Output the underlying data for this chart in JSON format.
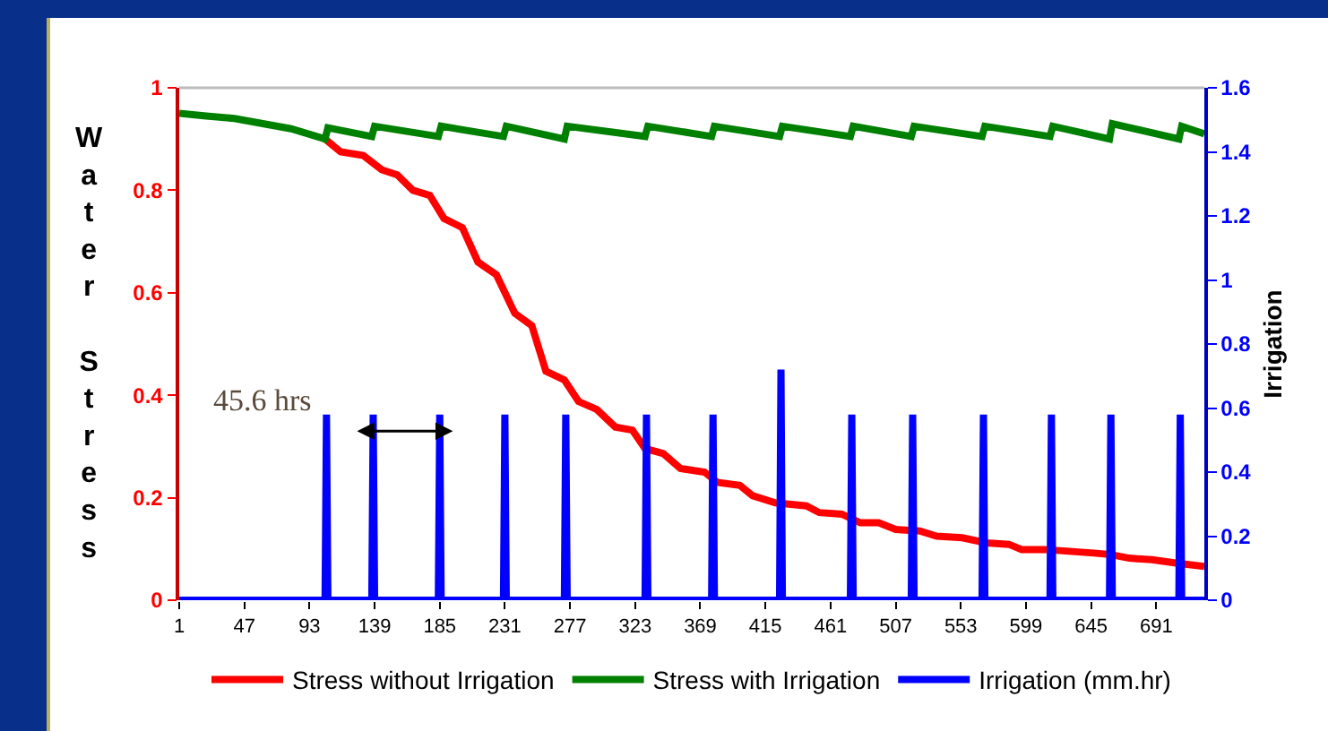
{
  "chart_data": {
    "type": "line",
    "ylabel": "Water Stress",
    "y2label": "Irrigation",
    "xlim": [
      1,
      725
    ],
    "xticks": [
      1,
      47,
      93,
      139,
      185,
      231,
      277,
      323,
      369,
      415,
      461,
      507,
      553,
      599,
      645,
      691
    ],
    "ylim": [
      0,
      1
    ],
    "yticks": [
      0,
      0.2,
      0.4,
      0.6,
      0.8,
      1
    ],
    "y2lim": [
      0,
      1.6
    ],
    "y2ticks": [
      0,
      0.2,
      0.4,
      0.6,
      0.8,
      1,
      1.2,
      1.4,
      1.6
    ],
    "grid": false,
    "legend": "bottom",
    "marker": "none",
    "line_style": "solid",
    "annotations": [
      "45.6 hrs"
    ],
    "series": [
      {
        "name": "Stress without Irrigation",
        "color": "#ff0000",
        "x": [
          104,
          115,
          131,
          144,
          155,
          166,
          178,
          188,
          201,
          212,
          225,
          238,
          250,
          260,
          273,
          283,
          296,
          309,
          321,
          330,
          343,
          355,
          372,
          381,
          397,
          406,
          422,
          444,
          453,
          469,
          482,
          495,
          507,
          524,
          536,
          554,
          571,
          587,
          596,
          612,
          647,
          659,
          672,
          688,
          706,
          725
        ],
        "values": [
          0.9,
          0.875,
          0.868,
          0.84,
          0.83,
          0.8,
          0.79,
          0.745,
          0.727,
          0.66,
          0.635,
          0.56,
          0.536,
          0.447,
          0.43,
          0.388,
          0.372,
          0.338,
          0.332,
          0.296,
          0.286,
          0.257,
          0.25,
          0.23,
          0.224,
          0.204,
          0.19,
          0.184,
          0.171,
          0.168,
          0.151,
          0.151,
          0.138,
          0.135,
          0.125,
          0.122,
          0.112,
          0.109,
          0.099,
          0.099,
          0.092,
          0.089,
          0.082,
          0.079,
          0.072,
          0.066
        ]
      },
      {
        "name": "Stress with Irrigation",
        "color": "#008000",
        "x": [
          1,
          20,
          40,
          60,
          80,
          104,
          106,
          137,
          139,
          184,
          186,
          230,
          232,
          273,
          275,
          330,
          332,
          377,
          379,
          425,
          427,
          475,
          477,
          518,
          520,
          568,
          570,
          616,
          618,
          658,
          660,
          707,
          709,
          725
        ],
        "values": [
          0.95,
          0.945,
          0.94,
          0.93,
          0.92,
          0.9,
          0.922,
          0.905,
          0.925,
          0.905,
          0.925,
          0.905,
          0.925,
          0.9,
          0.925,
          0.905,
          0.925,
          0.905,
          0.925,
          0.905,
          0.925,
          0.905,
          0.925,
          0.905,
          0.925,
          0.905,
          0.925,
          0.905,
          0.925,
          0.9,
          0.93,
          0.9,
          0.925,
          0.91
        ]
      },
      {
        "name": "Irrigation (mm.hr)",
        "color": "#0000ff",
        "axis": "y2",
        "x": [
          1,
          104,
          105,
          106,
          137,
          138,
          139,
          184,
          185,
          186,
          230,
          231,
          232,
          273,
          274,
          275,
          330,
          331,
          332,
          377,
          378,
          379,
          425,
          426,
          427,
          475,
          476,
          477,
          518,
          519,
          520,
          568,
          569,
          570,
          616,
          617,
          618,
          658,
          659,
          660,
          707,
          708,
          709,
          725
        ],
        "values": [
          0,
          0,
          0.58,
          0,
          0,
          0.58,
          0,
          0,
          0.58,
          0,
          0,
          0.58,
          0,
          0,
          0.58,
          0,
          0,
          0.58,
          0,
          0,
          0.58,
          0,
          0,
          0.72,
          0,
          0,
          0.58,
          0,
          0,
          0.58,
          0,
          0,
          0.58,
          0,
          0,
          0.58,
          0,
          0,
          0.58,
          0,
          0,
          0.58,
          0,
          0
        ]
      }
    ]
  }
}
